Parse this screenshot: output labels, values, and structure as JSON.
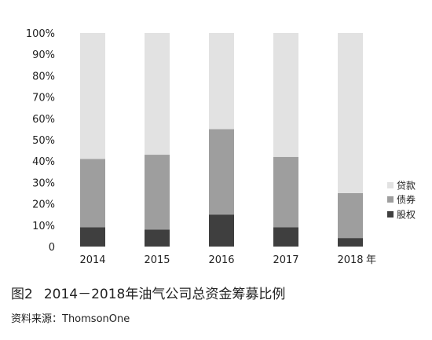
{
  "chart_data": {
    "type": "bar",
    "stacked": true,
    "categories": [
      "2014",
      "2015",
      "2016",
      "2017",
      "2018"
    ],
    "x_unit": "年",
    "series": [
      {
        "name": "股权",
        "color": "#3f3f3f",
        "values": [
          9,
          8,
          15,
          9,
          4
        ]
      },
      {
        "name": "债券",
        "color": "#9e9e9e",
        "values": [
          32,
          35,
          40,
          33,
          21
        ]
      },
      {
        "name": "贷款",
        "color": "#e2e2e2",
        "values": [
          59,
          57,
          45,
          58,
          75
        ]
      }
    ],
    "ylim": [
      0,
      100
    ],
    "yticks": [
      "0",
      "10%",
      "20%",
      "30%",
      "40%",
      "50%",
      "60%",
      "70%",
      "80%",
      "90%",
      "100%"
    ],
    "grid": false,
    "legend_position": "right"
  },
  "caption": {
    "figure_number": "图2",
    "title": "2014－2018年油气公司总资金筹募比例"
  },
  "source": "资料来源：ThomsonOne"
}
